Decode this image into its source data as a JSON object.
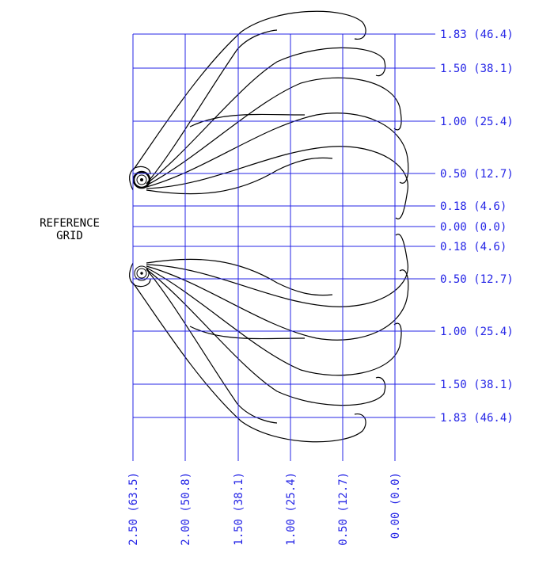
{
  "reference_label": [
    "REFERENCE",
    "GRID"
  ],
  "row_labels": [
    "1.83 (46.4)",
    "1.50 (38.1)",
    "1.00 (25.4)",
    "0.50 (12.7)",
    "0.18 (4.6)",
    "0.00 (0.0)",
    "0.18 (4.6)",
    "0.50 (12.7)",
    "1.00 (25.4)",
    "1.50 (38.1)",
    "1.83 (46.4)"
  ],
  "column_labels": [
    "2.50 (63.5)",
    "2.00 (50.8)",
    "1.50 (38.1)",
    "1.00 (25.4)",
    "0.50 (12.7)",
    "0.00 (0.0)"
  ]
}
